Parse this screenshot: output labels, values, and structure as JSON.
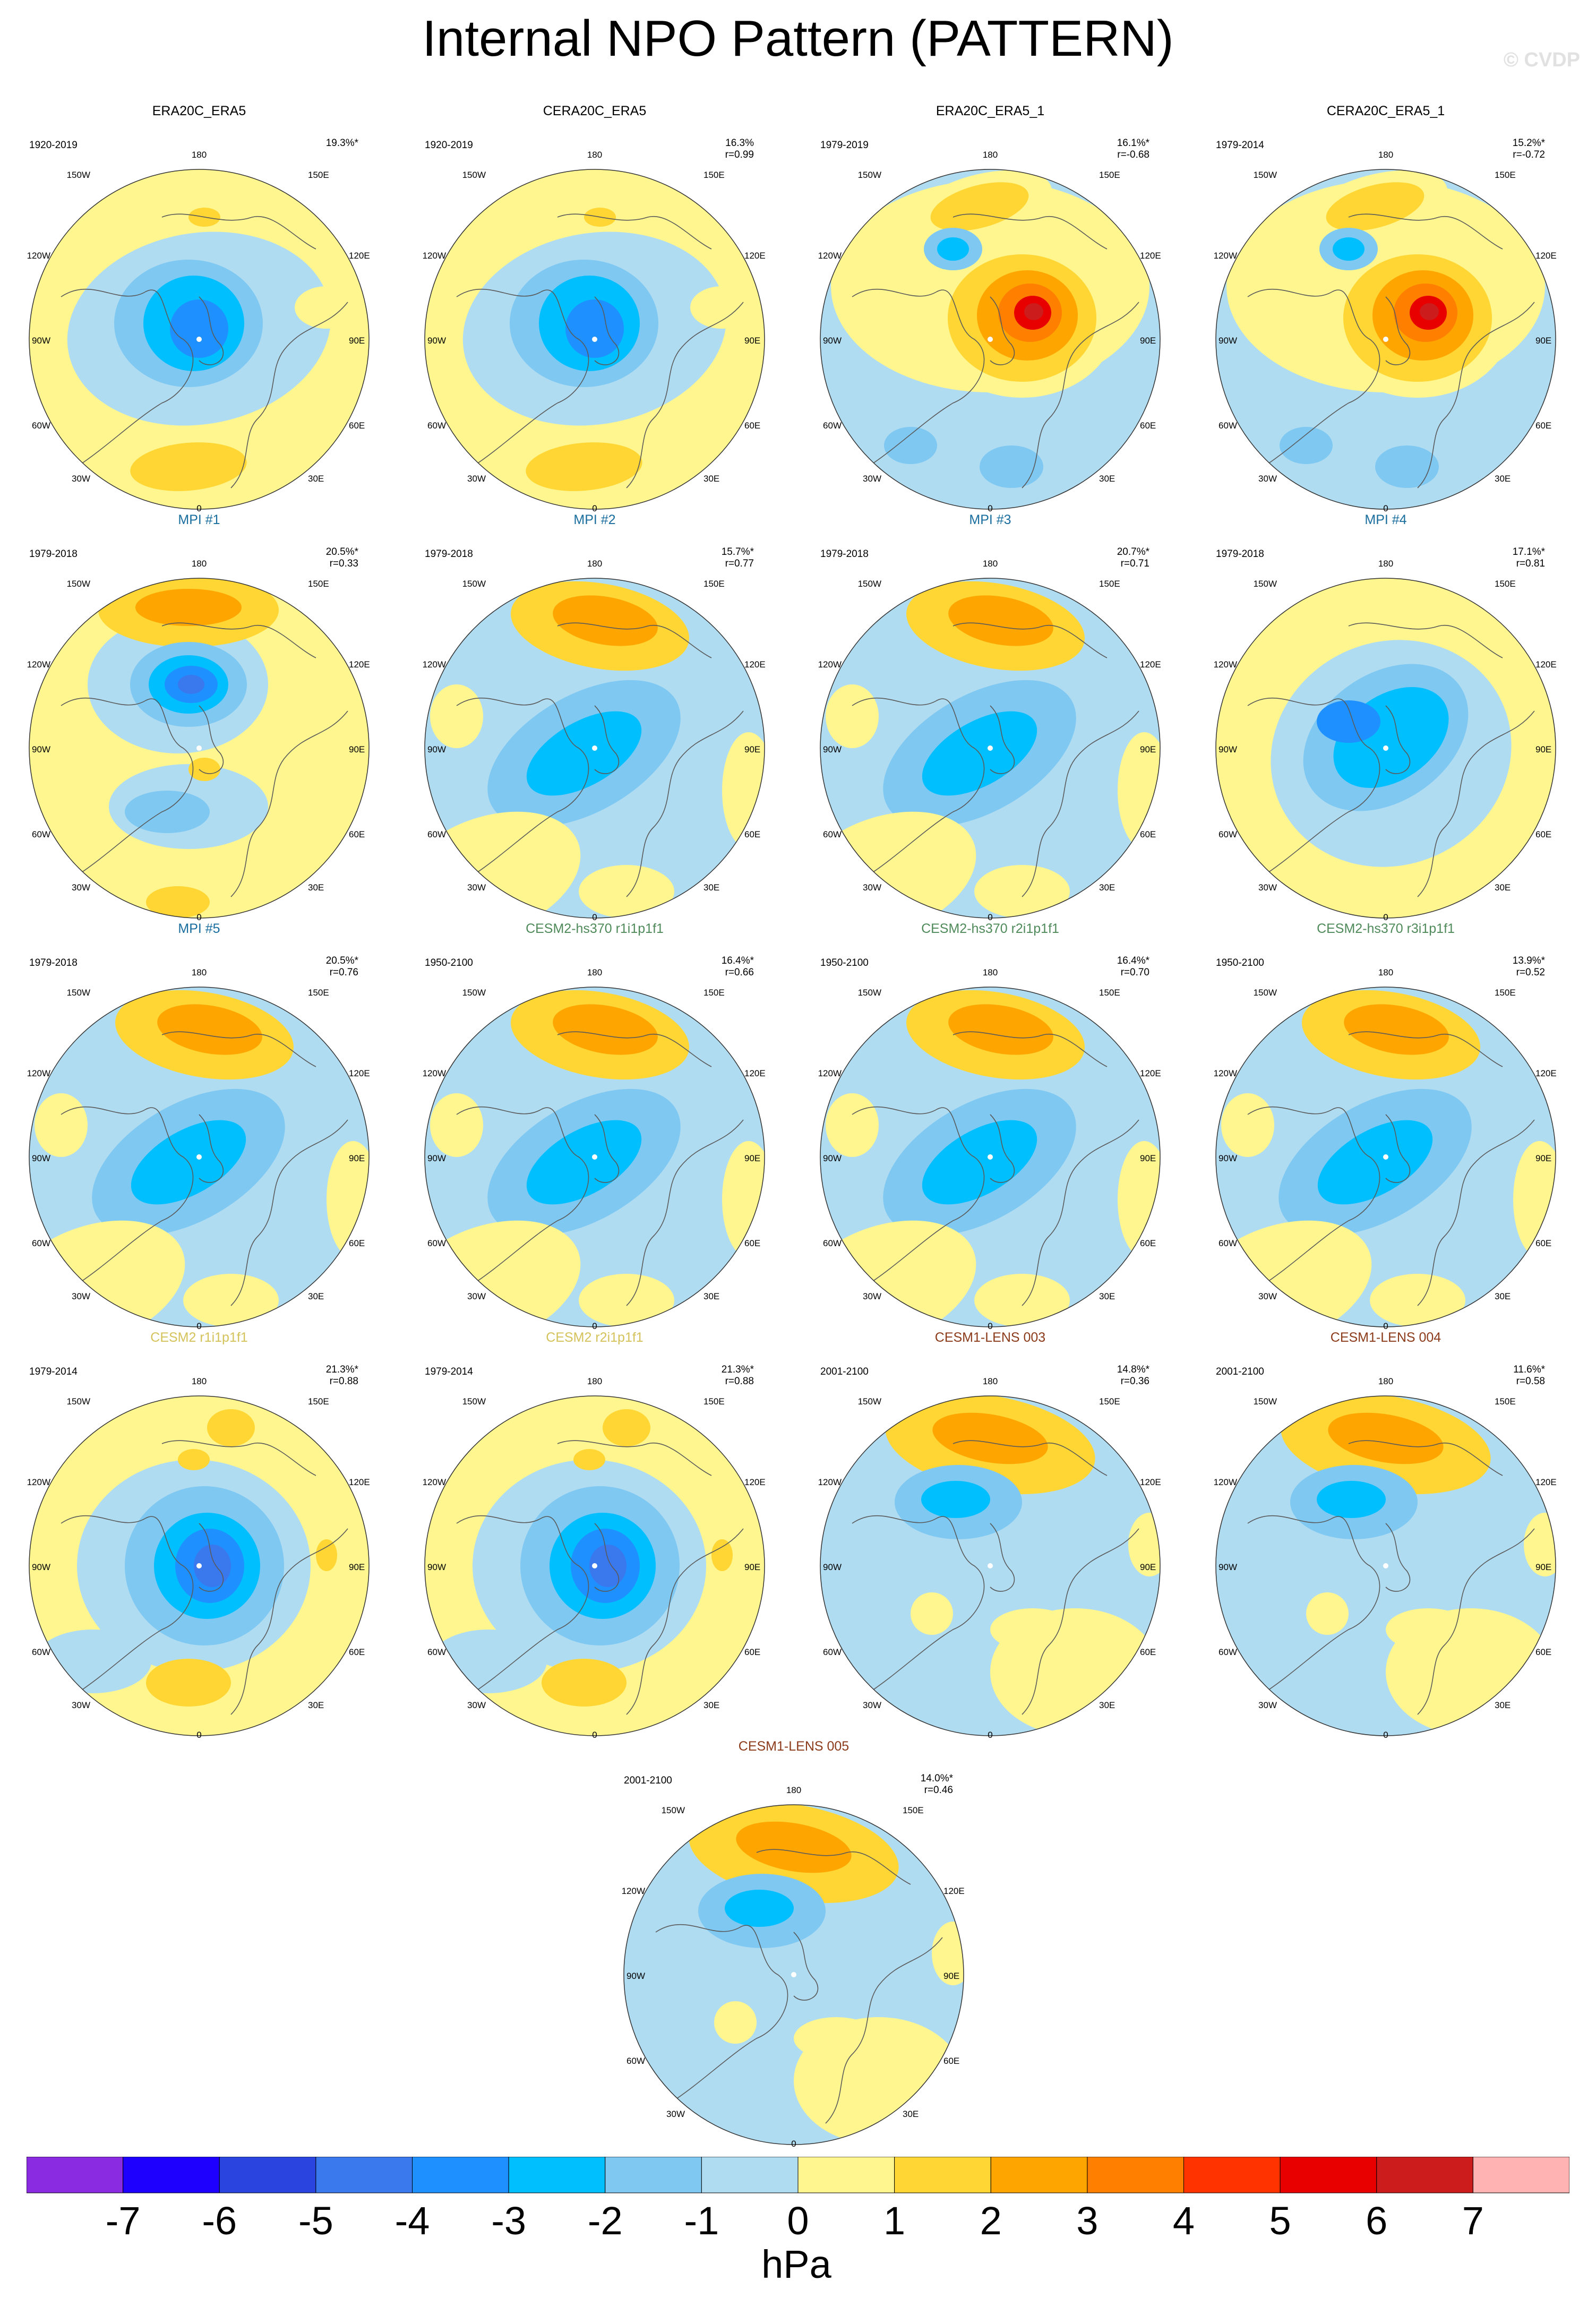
{
  "title": "Internal NPO Pattern (PATTERN)",
  "watermark": "© CVDP",
  "colorbar": {
    "colors": [
      "#8a2be2",
      "#1e00ff",
      "#2a44e0",
      "#3a78ee",
      "#1e90ff",
      "#00bfff",
      "#7ec8f2",
      "#b0dcf2",
      "#fff68f",
      "#ffd633",
      "#ffa500",
      "#ff7f00",
      "#ff3300",
      "#e80000",
      "#cc1c1c",
      "#ffb3b3"
    ],
    "labels": [
      "-7",
      "-6",
      "-5",
      "-4",
      "-3",
      "-2",
      "-1",
      "0",
      "1",
      "2",
      "3",
      "4",
      "5",
      "6",
      "7"
    ],
    "unit": "hPa"
  },
  "map_labels": {
    "top": "180",
    "bottom": "0",
    "l1": "150W",
    "l2": "120W",
    "l3": "90W",
    "l4": "60W",
    "l5": "30W",
    "r1": "150E",
    "r2": "120E",
    "r3": "90E",
    "r4": "60E",
    "r5": "30E"
  },
  "panels": [
    {
      "title": "ERA20C_ERA5",
      "title_color": "#000000",
      "period": "1920-2019",
      "stat1": "19.3%*",
      "stat2": "",
      "pattern": "era_long"
    },
    {
      "title": "CERA20C_ERA5",
      "title_color": "#000000",
      "period": "1920-2019",
      "stat1": "16.3%",
      "stat2": "r=0.99",
      "pattern": "era_long"
    },
    {
      "title": "ERA20C_ERA5_1",
      "title_color": "#000000",
      "period": "1979-2019",
      "stat1": "16.1%*",
      "stat2": "r=-0.68",
      "pattern": "era_short"
    },
    {
      "title": "CERA20C_ERA5_1",
      "title_color": "#000000",
      "period": "1979-2014",
      "stat1": "15.2%*",
      "stat2": "r=-0.72",
      "pattern": "era_short"
    },
    {
      "title": "MPI #1",
      "title_color": "#1a6e9e",
      "period": "1979-2018",
      "stat1": "20.5%*",
      "stat2": "r=0.33",
      "pattern": "mpi1"
    },
    {
      "title": "MPI #2",
      "title_color": "#1a6e9e",
      "period": "1979-2018",
      "stat1": "15.7%*",
      "stat2": "r=0.77",
      "pattern": "model"
    },
    {
      "title": "MPI #3",
      "title_color": "#1a6e9e",
      "period": "1979-2018",
      "stat1": "20.7%*",
      "stat2": "r=0.71",
      "pattern": "model"
    },
    {
      "title": "MPI #4",
      "title_color": "#1a6e9e",
      "period": "1979-2018",
      "stat1": "17.1%*",
      "stat2": "r=0.81",
      "pattern": "mpi4"
    },
    {
      "title": "MPI #5",
      "title_color": "#1a6e9e",
      "period": "1979-2018",
      "stat1": "20.5%*",
      "stat2": "r=0.76",
      "pattern": "model"
    },
    {
      "title": "CESM2-hs370 r1i1p1f1",
      "title_color": "#4f8a5a",
      "period": "1950-2100",
      "stat1": "16.4%*",
      "stat2": "r=0.66",
      "pattern": "model"
    },
    {
      "title": "CESM2-hs370 r2i1p1f1",
      "title_color": "#4f8a5a",
      "period": "1950-2100",
      "stat1": "16.4%*",
      "stat2": "r=0.70",
      "pattern": "model"
    },
    {
      "title": "CESM2-hs370 r3i1p1f1",
      "title_color": "#4f8a5a",
      "period": "1950-2100",
      "stat1": "13.9%*",
      "stat2": "r=0.52",
      "pattern": "model"
    },
    {
      "title": "CESM2 r1i1p1f1",
      "title_color": "#d4c25a",
      "period": "1979-2014",
      "stat1": "21.3%*",
      "stat2": "r=0.88",
      "pattern": "cesm2"
    },
    {
      "title": "CESM2 r2i1p1f1",
      "title_color": "#d4c25a",
      "period": "1979-2014",
      "stat1": "21.3%*",
      "stat2": "r=0.88",
      "pattern": "cesm2"
    },
    {
      "title": "CESM1-LENS 003",
      "title_color": "#8b3a1a",
      "period": "2001-2100",
      "stat1": "14.8%*",
      "stat2": "r=0.36",
      "pattern": "lens"
    },
    {
      "title": "CESM1-LENS 004",
      "title_color": "#8b3a1a",
      "period": "2001-2100",
      "stat1": "11.6%*",
      "stat2": "r=0.58",
      "pattern": "lens"
    },
    {
      "title": "CESM1-LENS 005",
      "title_color": "#8b3a1a",
      "period": "2001-2100",
      "stat1": "14.0%*",
      "stat2": "r=0.46",
      "pattern": "lens"
    }
  ]
}
